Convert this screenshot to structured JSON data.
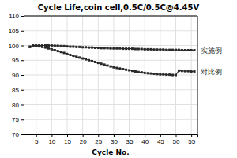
{
  "chart_data": {
    "type": "line",
    "title": "Cycle Life,coin cell,0.5C/0.5C@4.45V",
    "x_label": "Cycle No.",
    "x": [
      3,
      4,
      5,
      6,
      7,
      8,
      9,
      10,
      11,
      12,
      13,
      14,
      15,
      16,
      17,
      18,
      19,
      20,
      21,
      22,
      23,
      24,
      25,
      26,
      27,
      28,
      29,
      30,
      31,
      32,
      33,
      34,
      35,
      36,
      37,
      38,
      39,
      40,
      41,
      42,
      43,
      44,
      45,
      46,
      47,
      48,
      49,
      50,
      51,
      52,
      53,
      54,
      55,
      56
    ],
    "series": [
      {
        "name": "实施例",
        "color": "#2a2a2a",
        "marker": "square",
        "values": [
          99.6,
          100.0,
          100.0,
          100.0,
          100.0,
          100.0,
          100.0,
          100.0,
          99.9,
          99.9,
          99.8,
          99.8,
          99.7,
          99.6,
          99.6,
          99.5,
          99.5,
          99.4,
          99.4,
          99.3,
          99.3,
          99.2,
          99.2,
          99.1,
          99.1,
          99.1,
          99.0,
          99.0,
          99.0,
          99.0,
          98.9,
          98.9,
          98.9,
          98.9,
          98.8,
          98.8,
          98.8,
          98.7,
          98.7,
          98.7,
          98.6,
          98.6,
          98.6,
          98.6,
          98.5,
          98.5,
          98.5,
          98.5,
          98.5,
          98.4,
          98.4,
          98.4,
          98.4,
          98.4
        ]
      },
      {
        "name": "对比例",
        "color": "#2a2a2a",
        "marker": "square",
        "values": [
          99.5,
          99.8,
          99.9,
          99.7,
          99.5,
          99.3,
          99.0,
          98.7,
          98.4,
          98.1,
          97.8,
          97.5,
          97.1,
          96.8,
          96.5,
          96.2,
          95.9,
          95.6,
          95.3,
          95.0,
          94.7,
          94.4,
          94.1,
          93.8,
          93.5,
          93.2,
          92.9,
          92.6,
          92.4,
          92.2,
          92.0,
          91.8,
          91.6,
          91.4,
          91.2,
          91.0,
          90.9,
          90.7,
          90.6,
          90.5,
          90.4,
          90.3,
          90.2,
          90.2,
          90.1,
          90.1,
          90.0,
          90.0,
          91.5,
          91.4,
          91.3,
          91.3,
          91.2,
          91.2
        ]
      }
    ],
    "xlim": [
      1,
      57
    ],
    "ylim": [
      70,
      110
    ],
    "xticks": [
      5,
      10,
      15,
      20,
      25,
      30,
      35,
      40,
      45,
      50,
      55
    ],
    "yticks": [
      70,
      75,
      80,
      85,
      90,
      95,
      100,
      105,
      110
    ],
    "grid": true
  }
}
